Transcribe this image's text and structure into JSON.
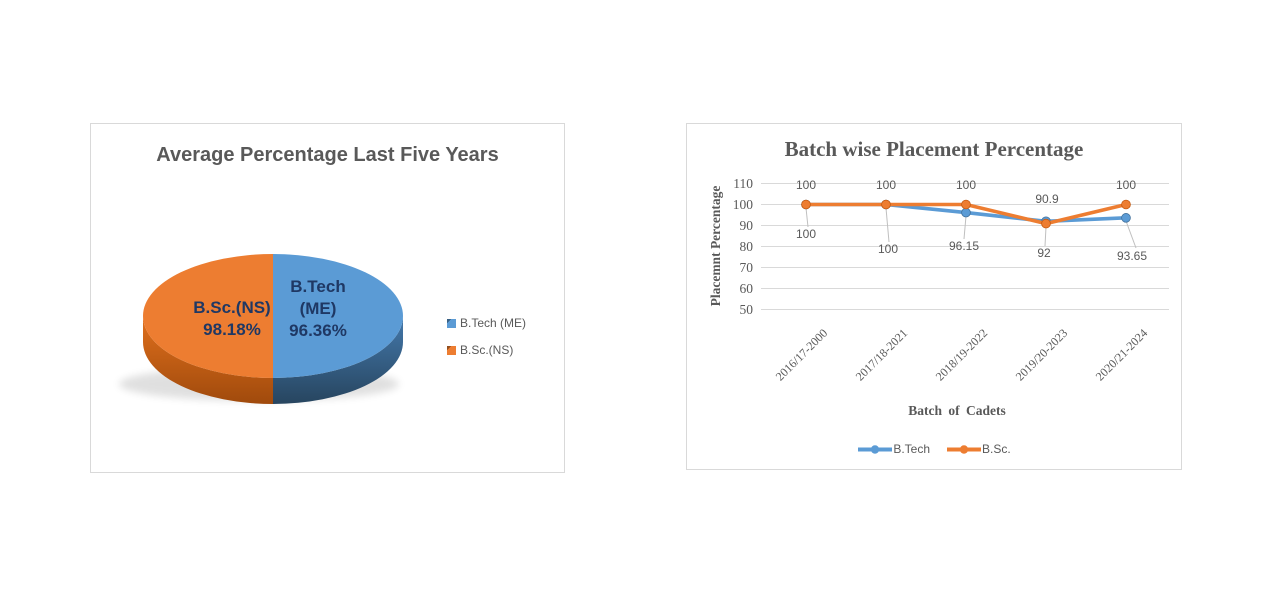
{
  "palette": {
    "blue": "#5B9BD5",
    "orange": "#ED7D31",
    "blue_dark": "#41719C",
    "orange_dark": "#C55A11",
    "grid": "#D9D9D9",
    "text_gray": "#595959",
    "pie_label_navy": "#1F3864",
    "leader_gray": "#BFBFBF",
    "card_border": "#D9D9D9",
    "pie_blue_side": [
      "#4479AC",
      "#27455F"
    ],
    "pie_orange_side": [
      "#E0701D",
      "#A04A0C"
    ]
  },
  "chart_data": [
    {
      "type": "pie",
      "style": "3d",
      "title": "Average Percentage Last Five Years",
      "slices": [
        {
          "label": "B.Tech (ME)",
          "value": 96.36,
          "lines": [
            "B.Tech",
            "(ME)",
            "96.36%"
          ],
          "color": "#5B9BD5"
        },
        {
          "label": "B.Sc.(NS)",
          "value": 98.18,
          "lines": [
            "B.Sc.(NS)",
            "98.18%"
          ],
          "color": "#ED7D31"
        }
      ],
      "legend_position": "right",
      "legend": [
        "B.Tech (ME)",
        "B.Sc.(NS)"
      ]
    },
    {
      "type": "line",
      "title": "Batch wise Placement Percentage",
      "xlabel": "Batch of Cadets",
      "ylabel": "Placemnt Percentage",
      "categories": [
        "2016/17-2000",
        "2017/18-2021",
        "2018/19-2022",
        "2019/20-2023",
        "2020/21-2024"
      ],
      "series": [
        {
          "name": "B.Tech",
          "color": "#5B9BD5",
          "values": [
            100,
            100,
            96.15,
            92,
            93.65
          ],
          "labels": [
            "100",
            "100",
            "96.15",
            "92",
            "93.65"
          ],
          "label_placement": "below"
        },
        {
          "name": "B.Sc.",
          "color": "#ED7D31",
          "values": [
            100,
            100,
            100,
            90.9,
            100
          ],
          "labels": [
            "100",
            "100",
            "100",
            "90.9",
            "100"
          ],
          "label_placement": "above"
        }
      ],
      "yticks": [
        110,
        100,
        90,
        80,
        70,
        60,
        50
      ],
      "ylim": [
        50,
        110
      ],
      "grid": true,
      "legend_position": "bottom",
      "legend": [
        "B.Tech",
        "B.Sc."
      ]
    }
  ]
}
